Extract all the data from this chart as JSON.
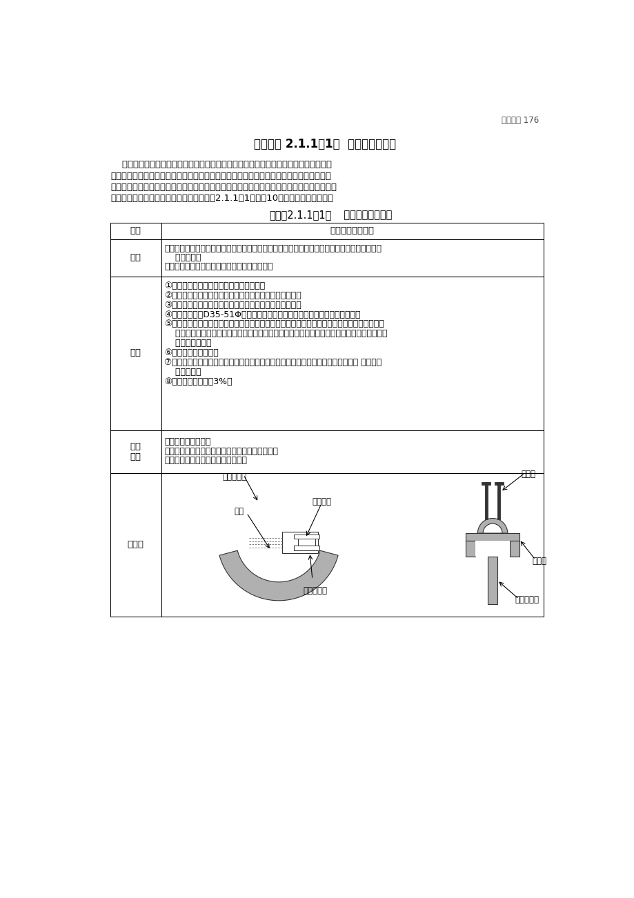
{
  "page_number": "参考资料 176",
  "main_title": "参考资料 2.1.1（1）  最近的管片型式",
  "intro_text": [
    "    盾构施工法使用的管片一般为平板形的钢筋混凝土制品，多用短螺栓在钢制接头箱内连",
    "接。近年来，为了提高管片组装的方便性、降低制造费用、减少容易发生漏水等弱点、提高",
    "施工速度，不断有新型管片得到开发并投入使用。与之相配套的管片系统也取得了长足进步。",
    "现将最新的管片开发的主要情况，以参考表2.1.1（1）～（10）的形式，介绍如下。"
  ],
  "table_title_normal": "参考表2.1.1（1）",
  "table_title_bold": "   插入式高刚性接头",
  "row0_header": "名称",
  "row0_content": "插入式高刚性接头",
  "row1_header": "结构",
  "row1_content_lines": [
    "断面形状：平板形；材料：钢筋混凝土接头：高刚性接头（接头面：拱形拉杆形状）、插入式接",
    "    头、长螺栓",
    "轴向接头：钢制箱形接头、插入式接头、短螺栓"
  ],
  "row2_header": "特点",
  "row2_content_lines": [
    "①管片环刚性高，有利于软弱地基的使用。",
    "②因隧道的变形小了，故管片接头面的开缝小，止水性高。",
    "③组装时只用螺栓紧固，施工容易，有时也用于硬质地基。",
    "④插入的材料为D35-51Φ异形钢筋，在其内侧，为拧入螺栓，设置空心螺纹。",
    "⑤高刚性接头端，接头板和拱形板连成一体，形成拱形拉杆，接头盘作为抗拉构件抵抗外力、拱",
    "    形板则作为压缩构件抵抗外力。为此，不发生传统接头的接头板弯曲变形，是一种环向刚性很",
    "    高的接头结构。",
    "⑥材料使用球墨铸铁。",
    "⑦从高刚性接头端插入连接螺栓，拧入连接到插入式螺栓上。没有螺母，只要拧入螺 栓即可，",
    "    组装容易。",
    "⑧专利：接头价格的3%。"
  ],
  "row3_header": "适用\n隧道",
  "row3_content_lines": [
    "常营新线：弘道隧道",
    "崎玉高速铁路线：赤山隧道、户冢隧道、大门隧道",
    "临海副都心线：天王洲隧道（单线）"
  ],
  "row4_header": "示意图",
  "label_maoshuan": "锚栓",
  "label_jietouluoshuan": "接头螺栓",
  "label_gaogangxingjietou": "高刚性接头",
  "label_charusjietou_left": "插入式接头",
  "label_gongxingban": "拱形板",
  "label_lianjiebu": "连接部",
  "label_charusjietou_right": "插入式接头",
  "bg_color": "#ffffff",
  "gray_color": "#999999",
  "dark_gray": "#555555",
  "border_color": "#333333"
}
